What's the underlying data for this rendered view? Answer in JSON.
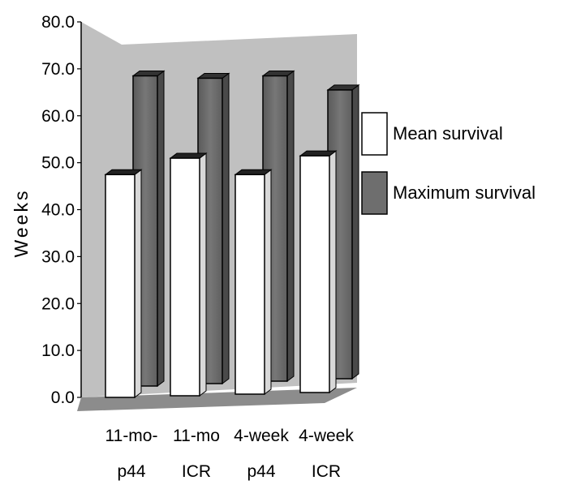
{
  "chart_data": {
    "type": "bar",
    "categories": [
      {
        "line1": "11-mo-",
        "line2": "p44"
      },
      {
        "line1": "11-mo",
        "line2": "ICR"
      },
      {
        "line1": "4-week",
        "line2": "p44"
      },
      {
        "line1": "4-week",
        "line2": "ICR"
      }
    ],
    "series": [
      {
        "name": "Mean survival",
        "values": [
          48.5,
          52.0,
          48.5,
          52.5
        ],
        "color": "#ffffff"
      },
      {
        "name": "Maximum survival",
        "values": [
          68.5,
          68.0,
          68.5,
          65.5
        ],
        "color": "#6e6e6e"
      }
    ],
    "ylabel": "Weeks",
    "ylim": [
      0,
      80
    ],
    "ticks": [
      "0.0",
      "10.0",
      "20.0",
      "30.0",
      "40.0",
      "50.0",
      "60.0",
      "70.0",
      "80.0"
    ],
    "legend_position": "right",
    "style": "3d",
    "colors": {
      "wall": "#c0c0c0",
      "floor": "#808080"
    }
  }
}
